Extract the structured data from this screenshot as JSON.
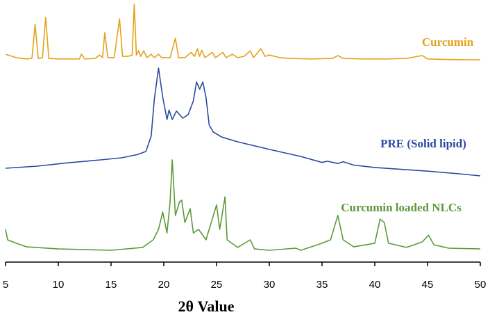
{
  "chart_data": {
    "type": "line",
    "x_label": "2θ Value",
    "xlim": [
      5,
      50
    ],
    "xticks": [
      5,
      10,
      15,
      20,
      25,
      30,
      35,
      40,
      45,
      50
    ],
    "ylim": [
      0,
      100
    ],
    "series": [
      {
        "name": "Curcumin",
        "color": "#e3a21a",
        "x": [
          5,
          6,
          7,
          7.5,
          7.8,
          8.1,
          8.5,
          8.8,
          9.1,
          10,
          11,
          12,
          12.2,
          12.5,
          13.5,
          13.9,
          14.2,
          14.4,
          14.7,
          15.3,
          15.8,
          16.1,
          16.6,
          17,
          17.2,
          17.4,
          17.6,
          17.8,
          18.1,
          18.4,
          18.8,
          19.1,
          19.5,
          19.8,
          20.6,
          21.1,
          21.4,
          22,
          22.6,
          22.9,
          23.2,
          23.4,
          23.6,
          23.9,
          24.6,
          24.9,
          25.6,
          25.9,
          26.5,
          27,
          27.6,
          28.2,
          28.5,
          29.2,
          29.6,
          30,
          31,
          32,
          34,
          36,
          36.5,
          37,
          39,
          41,
          43,
          44.5,
          45,
          47,
          49,
          50
        ],
        "values": [
          79.3,
          78,
          77.5,
          77.7,
          90.7,
          77.7,
          77.9,
          93.4,
          77.7,
          77.5,
          77.5,
          77.5,
          79.3,
          77.5,
          77.7,
          79,
          78,
          87.5,
          78,
          78,
          92.8,
          78.5,
          78.5,
          79,
          98.4,
          79,
          80.6,
          78.5,
          80.6,
          78,
          79.3,
          78,
          79.3,
          78,
          78,
          85.4,
          78,
          78,
          80,
          78.5,
          81.4,
          78.5,
          80.8,
          78,
          80,
          78,
          80,
          78,
          79.3,
          78,
          78.5,
          80.6,
          78,
          81.4,
          78.5,
          79,
          78,
          77.7,
          77.5,
          77.7,
          78.8,
          77.7,
          77.5,
          77.5,
          77.7,
          78.8,
          77.5,
          77.3,
          77.2,
          77.2
        ]
      },
      {
        "name": "PRE (Solid lipid)",
        "color": "#2b4aa0",
        "x": [
          5,
          8,
          11,
          14,
          16,
          17.5,
          18.3,
          18.8,
          19.1,
          19.5,
          19.9,
          20.3,
          20.5,
          20.8,
          21.2,
          21.8,
          22.3,
          22.8,
          23.1,
          23.4,
          23.7,
          24,
          24.3,
          24.7,
          25.5,
          27,
          30,
          33,
          35,
          35.5,
          36.5,
          37,
          38,
          40,
          45,
          48,
          50
        ],
        "values": [
          35.8,
          36.6,
          37.9,
          39,
          39.8,
          41,
          42.2,
          48,
          62,
          74,
          62.9,
          54.4,
          58,
          54.4,
          57.6,
          54.9,
          56.2,
          61.5,
          68.7,
          66,
          68.7,
          62.9,
          52.3,
          49.6,
          47.7,
          45.9,
          43,
          40.3,
          38,
          38.5,
          37.6,
          38.3,
          37,
          36.1,
          34.7,
          33.7,
          32.9
        ]
      },
      {
        "name": "Curcumin loaded NLCs",
        "color": "#5a9a3a",
        "x": [
          5,
          5.2,
          6,
          7,
          10,
          15,
          18,
          19,
          19.5,
          19.9,
          20.3,
          20.6,
          20.8,
          21.1,
          21.5,
          21.7,
          22,
          22.5,
          22.8,
          23.3,
          24,
          25,
          25.3,
          25.8,
          26,
          27,
          28.2,
          28.6,
          30,
          32.5,
          33,
          35,
          35.8,
          36.5,
          37,
          38,
          40,
          40.5,
          40.9,
          41.3,
          43,
          44.5,
          45.1,
          45.6,
          47,
          50
        ],
        "values": [
          12.5,
          8.5,
          7.2,
          5.8,
          5,
          4.5,
          5.6,
          8.5,
          12.5,
          19.1,
          11.1,
          23.1,
          39,
          17.8,
          23.1,
          23.6,
          15.1,
          20.4,
          11.1,
          12.5,
          8.5,
          21.8,
          12.5,
          24.9,
          8.5,
          5.6,
          8.5,
          5,
          4.5,
          5.3,
          4.5,
          7.2,
          8.5,
          17.8,
          8.5,
          5.8,
          7.2,
          16.4,
          15.1,
          7.2,
          5.6,
          7.7,
          10.3,
          6.6,
          5.3,
          5
        ]
      }
    ]
  }
}
